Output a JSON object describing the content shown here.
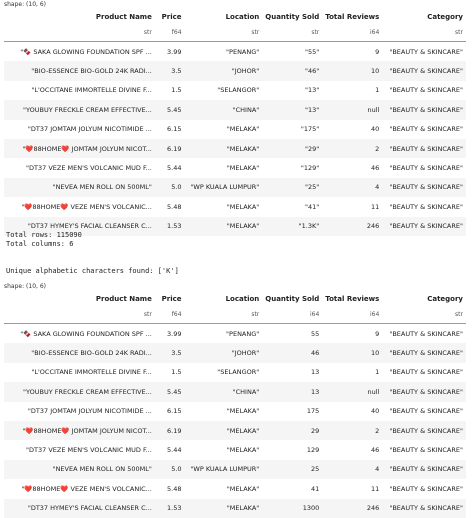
{
  "table1": {
    "shape": "shape: (10, 6)",
    "headers": [
      "Product Name",
      "Price",
      "Location",
      "Quantity Sold",
      "Total Reviews",
      "Category"
    ],
    "dtypes": [
      "str",
      "f64",
      "str",
      "str",
      "i64",
      "str"
    ],
    "rows": [
      [
        "\"🍫 SAKA GLOWING FOUNDATION SPF ...",
        "3.99",
        "\"PENANG\"",
        "\"55\"",
        "9",
        "\"BEAUTY & SKINCARE\""
      ],
      [
        "\"BIO-ESSENCE BIO-GOLD 24K  RADI...",
        "3.5",
        "\"JOHOR\"",
        "\"46\"",
        "10",
        "\"BEAUTY & SKINCARE\""
      ],
      [
        "\"L'OCCITANE IMMORTELLE DIVINE F...",
        "1.5",
        "\"SELANGOR\"",
        "\"13\"",
        "1",
        "\"BEAUTY & SKINCARE\""
      ],
      [
        "\"YOUBUY FRECKLE CREAM EFFECTIVE...",
        "5.45",
        "\"CHINA\"",
        "\"13\"",
        "null",
        "\"BEAUTY & SKINCARE\""
      ],
      [
        "\"DT37 JOMTAM JOLYUM NICOTIMIDE ...",
        "6.15",
        "\"MELAKA\"",
        "\"175\"",
        "40",
        "\"BEAUTY & SKINCARE\""
      ],
      [
        "\"❤️88HOME❤️ JOMTAM JOLYUM NICOT...",
        "6.19",
        "\"MELAKA\"",
        "\"29\"",
        "2",
        "\"BEAUTY & SKINCARE\""
      ],
      [
        "\"DT37 VEZE MEN'S VOLCANIC MUD F...",
        "5.44",
        "\"MELAKA\"",
        "\"129\"",
        "46",
        "\"BEAUTY & SKINCARE\""
      ],
      [
        "\"NEVEA MEN ROLL ON 500ML\"",
        "5.0",
        "\"WP KUALA LUMPUR\"",
        "\"25\"",
        "4",
        "\"BEAUTY & SKINCARE\""
      ],
      [
        "\"❤️88HOME❤️ VEZE MEN'S VOLCANIC...",
        "5.48",
        "\"MELAKA\"",
        "\"41\"",
        "11",
        "\"BEAUTY & SKINCARE\""
      ],
      [
        "\"DT37 HYMEY'S FACIAL CLEANSER C...",
        "1.53",
        "\"MELAKA\"",
        "\"1.3K\"",
        "246",
        "\"BEAUTY & SKINCARE\""
      ]
    ]
  },
  "console": {
    "text1": "Total rows: 115090\nTotal columns: 6\n\n\nUnique alphabetic characters found: ['K']"
  },
  "table2": {
    "shape": "shape: (10, 6)",
    "headers": [
      "Product Name",
      "Price",
      "Location",
      "Quantity Sold",
      "Total Reviews",
      "Category"
    ],
    "dtypes": [
      "str",
      "f64",
      "str",
      "i64",
      "i64",
      "str"
    ],
    "rows": [
      [
        "\"🍫 SAKA GLOWING FOUNDATION SPF ...",
        "3.99",
        "\"PENANG\"",
        "55",
        "9",
        "\"BEAUTY & SKINCARE\""
      ],
      [
        "\"BIO-ESSENCE BIO-GOLD 24K  RADI...",
        "3.5",
        "\"JOHOR\"",
        "46",
        "10",
        "\"BEAUTY & SKINCARE\""
      ],
      [
        "\"L'OCCITANE IMMORTELLE DIVINE F...",
        "1.5",
        "\"SELANGOR\"",
        "13",
        "1",
        "\"BEAUTY & SKINCARE\""
      ],
      [
        "\"YOUBUY FRECKLE CREAM EFFECTIVE...",
        "5.45",
        "\"CHINA\"",
        "13",
        "null",
        "\"BEAUTY & SKINCARE\""
      ],
      [
        "\"DT37 JOMTAM JOLYUM NICOTIMIDE ...",
        "6.15",
        "\"MELAKA\"",
        "175",
        "40",
        "\"BEAUTY & SKINCARE\""
      ],
      [
        "\"❤️88HOME❤️ JOMTAM JOLYUM NICOT...",
        "6.19",
        "\"MELAKA\"",
        "29",
        "2",
        "\"BEAUTY & SKINCARE\""
      ],
      [
        "\"DT37 VEZE MEN'S VOLCANIC MUD F...",
        "5.44",
        "\"MELAKA\"",
        "129",
        "46",
        "\"BEAUTY & SKINCARE\""
      ],
      [
        "\"NEVEA MEN ROLL ON 500ML\"",
        "5.0",
        "\"WP KUALA LUMPUR\"",
        "25",
        "4",
        "\"BEAUTY & SKINCARE\""
      ],
      [
        "\"❤️88HOME❤️ VEZE MEN'S VOLCANIC...",
        "5.48",
        "\"MELAKA\"",
        "41",
        "11",
        "\"BEAUTY & SKINCARE\""
      ],
      [
        "\"DT37 HYMEY'S FACIAL CLEANSER C...",
        "1.53",
        "\"MELAKA\"",
        "1300",
        "246",
        "\"BEAUTY & SKINCARE\""
      ]
    ]
  }
}
